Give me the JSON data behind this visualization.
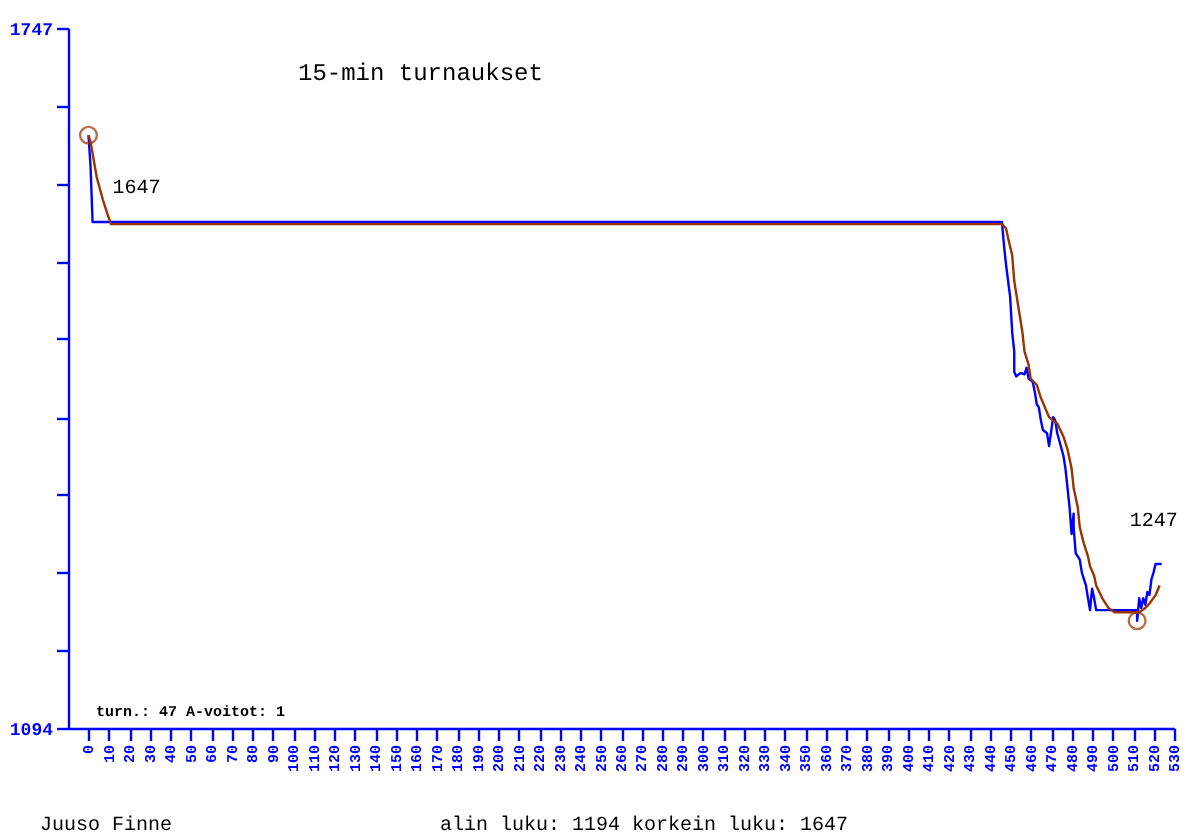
{
  "chart_data": {
    "type": "line",
    "title": "15-min turnaukset",
    "xlim": [
      -10,
      530
    ],
    "xticks": [
      0,
      10,
      20,
      30,
      40,
      50,
      60,
      70,
      80,
      90,
      100,
      110,
      120,
      130,
      140,
      150,
      160,
      170,
      180,
      190,
      200,
      210,
      220,
      230,
      240,
      250,
      260,
      270,
      280,
      290,
      300,
      310,
      320,
      330,
      340,
      350,
      360,
      370,
      380,
      390,
      400,
      410,
      420,
      430,
      440,
      450,
      460,
      470,
      480,
      490,
      500,
      510,
      520,
      530
    ],
    "ylim": [
      1094,
      1747
    ],
    "yticks": [
      1747,
      {
        "value": 1674,
        "label": null
      },
      {
        "value": 1602,
        "label": null
      },
      {
        "value": 1529,
        "label": null
      },
      {
        "value": 1457,
        "label": null
      },
      {
        "value": 1384,
        "label": null
      },
      {
        "value": 1312,
        "label": null
      },
      {
        "value": 1239,
        "label": null
      },
      {
        "value": 1167,
        "label": null
      },
      1094
    ],
    "grid": false,
    "series": [
      {
        "color": "#0000ff",
        "x": [
          0,
          1,
          2,
          446,
          447,
          448,
          449,
          450,
          451,
          452,
          452,
          453,
          455,
          457,
          458,
          459,
          461,
          462,
          463,
          464,
          465,
          466,
          468,
          469,
          471,
          472,
          473,
          476,
          477,
          478,
          479,
          480,
          481,
          481,
          482,
          484,
          485,
          487,
          488,
          489,
          490,
          491,
          492,
          512,
          512,
          513,
          514,
          515,
          516,
          517,
          518,
          519,
          520,
          521,
          524
        ],
        "values": [
          1647,
          1618,
          1566,
          1566,
          1544,
          1526,
          1511,
          1496,
          1463,
          1445,
          1426,
          1422,
          1425,
          1424,
          1430,
          1420,
          1417,
          1408,
          1396,
          1393,
          1381,
          1372,
          1369,
          1357,
          1384,
          1381,
          1369,
          1348,
          1336,
          1318,
          1300,
          1275,
          1294,
          1281,
          1257,
          1251,
          1239,
          1227,
          1215,
          1204,
          1224,
          1215,
          1204,
          1204,
          1194,
          1215,
          1206,
          1215,
          1209,
          1221,
          1218,
          1233,
          1239,
          1247,
          1247
        ]
      },
      {
        "color": "#993300",
        "x": [
          0,
          1,
          4,
          7,
          9,
          11,
          446,
          448,
          449,
          451,
          452,
          454,
          456,
          457,
          459,
          460,
          463,
          465,
          467,
          469,
          473,
          476,
          478,
          480,
          481,
          483,
          484,
          486,
          488,
          489,
          491,
          492,
          495,
          498,
          501,
          513,
          516,
          518,
          521,
          523
        ],
        "values": [
          1647,
          1641,
          1608,
          1587,
          1575,
          1564,
          1564,
          1560,
          1551,
          1535,
          1511,
          1487,
          1463,
          1445,
          1433,
          1420,
          1414,
          1402,
          1393,
          1384,
          1378,
          1366,
          1354,
          1336,
          1318,
          1300,
          1281,
          1266,
          1254,
          1245,
          1236,
          1227,
          1215,
          1206,
          1202,
          1202,
          1206,
          1210,
          1218,
          1227
        ]
      },
      {
        "type": "scatter",
        "marker": "circle",
        "color": "#993300",
        "x": [
          0,
          512
        ],
        "values": [
          1647,
          1194
        ]
      }
    ],
    "annotations": [
      {
        "text": "1647",
        "x": 0,
        "y": 1647
      },
      {
        "text": "1247",
        "x": 524,
        "y": 1247
      },
      "turn.: 47  A-voitot: 1",
      "Juuso Finne",
      "alin luku: 1194  korkein luku: 1647"
    ]
  }
}
